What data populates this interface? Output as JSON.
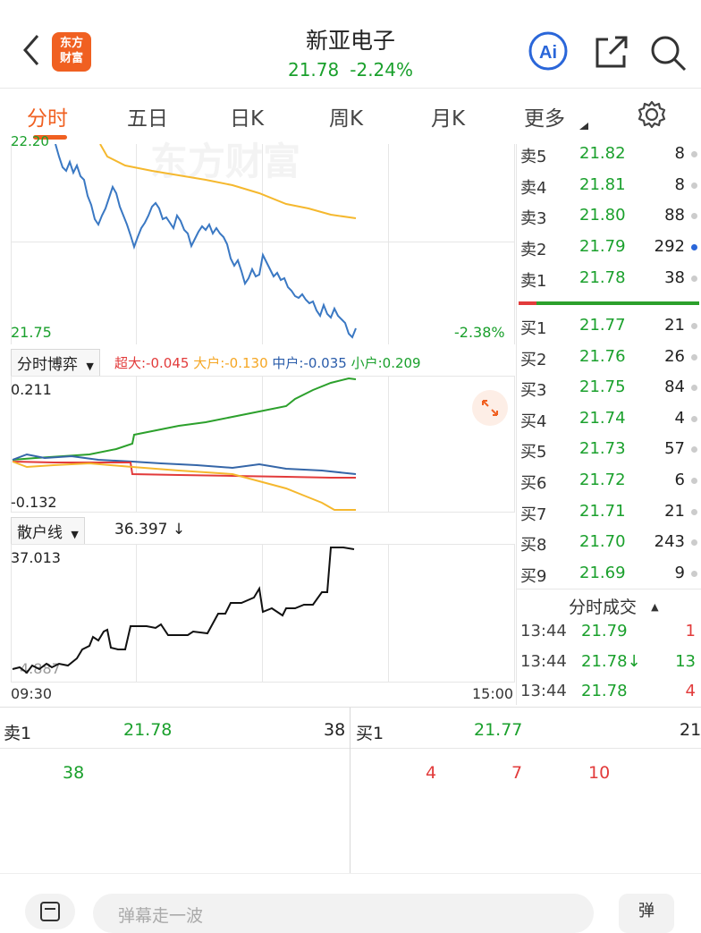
{
  "header": {
    "stock_name": "新亚电子",
    "price": "21.78",
    "change_pct": "-2.24%",
    "logo_line1": "东方",
    "logo_line2": "财富",
    "ai_label": "Ai"
  },
  "tabs": [
    "分时",
    "五日",
    "日K",
    "周K",
    "月K",
    "更多"
  ],
  "price_chart": {
    "top_label": "22.20",
    "low_label": "21.75",
    "low_pct": "-2.38%",
    "watermark": "东方财富"
  },
  "game_panel": {
    "selector": "分时博弈",
    "super": "超大:-0.045",
    "large": "大户:-0.130",
    "medium": "中户:-0.035",
    "small": "小户:0.209",
    "max": "0.211",
    "min": "-0.132"
  },
  "retail_panel": {
    "selector": "散户线",
    "value": "36.397 ↓",
    "max": "37.013",
    "min": "4.887",
    "time_start": "09:30",
    "time_end": "15:00"
  },
  "order_book": {
    "asks": [
      {
        "label": "卖5",
        "price": "21.82",
        "vol": "8"
      },
      {
        "label": "卖4",
        "price": "21.81",
        "vol": "8"
      },
      {
        "label": "卖3",
        "price": "21.80",
        "vol": "88"
      },
      {
        "label": "卖2",
        "price": "21.79",
        "vol": "292"
      },
      {
        "label": "卖1",
        "price": "21.78",
        "vol": "38"
      }
    ],
    "bids": [
      {
        "label": "买1",
        "price": "21.77",
        "vol": "21"
      },
      {
        "label": "买2",
        "price": "21.76",
        "vol": "26"
      },
      {
        "label": "买3",
        "price": "21.75",
        "vol": "84"
      },
      {
        "label": "买4",
        "price": "21.74",
        "vol": "4"
      },
      {
        "label": "买5",
        "price": "21.73",
        "vol": "57"
      },
      {
        "label": "买6",
        "price": "21.72",
        "vol": "6"
      },
      {
        "label": "买7",
        "price": "21.71",
        "vol": "21"
      },
      {
        "label": "买8",
        "price": "21.70",
        "vol": "243"
      },
      {
        "label": "买9",
        "price": "21.69",
        "vol": "9"
      }
    ]
  },
  "ticks": {
    "title": "分时成交",
    "rows": [
      {
        "time": "13:44",
        "price": "21.79",
        "vol": "1"
      },
      {
        "time": "13:44",
        "price": "21.78↓",
        "vol": "13"
      },
      {
        "time": "13:44",
        "price": "21.78",
        "vol": "4"
      }
    ]
  },
  "summary": {
    "ask_label": "卖1",
    "ask_price": "21.78",
    "ask_vol": "38",
    "bid_label": "买1",
    "bid_price": "21.77",
    "bid_vol": "21",
    "ask_queue": [
      "38"
    ],
    "bid_queue": [
      "4",
      "7",
      "10"
    ]
  },
  "bottom": {
    "comment_placeholder": "弹幕走一波",
    "danmu_label": "弹"
  },
  "colors": {
    "accent": "#f06021",
    "up": "#e23b3b",
    "down": "#1aa02c",
    "price_line": "#3a78c3",
    "avg_line": "#f5b82e"
  }
}
